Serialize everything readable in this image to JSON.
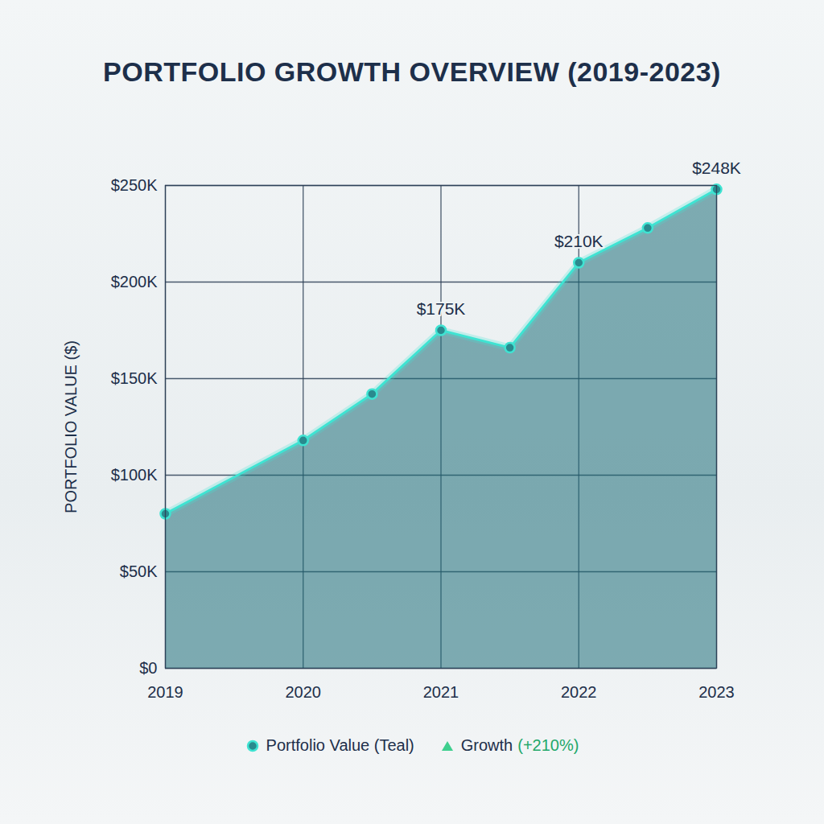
{
  "chart_data": {
    "type": "area",
    "title": "PORTFOLIO GROWTH OVERVIEW (2019-2023)",
    "y_label": "PORTFOLIO VALUE ($)",
    "x": [
      2019,
      2020,
      2020.5,
      2021,
      2021.5,
      2022,
      2022.5,
      2023
    ],
    "series": [
      {
        "name": "Portfolio Value (Teal)",
        "color": "#3fe3d2",
        "marker": "circle",
        "values": [
          80000,
          118000,
          142000,
          175000,
          166000,
          210000,
          228000,
          248000
        ]
      }
    ],
    "xlim": [
      2019,
      2023
    ],
    "xticks": [
      2019,
      2020,
      2021,
      2022,
      2023
    ],
    "ylim": [
      0,
      250000
    ],
    "yticks": [
      {
        "value": 0,
        "label": "$0"
      },
      {
        "value": 50000,
        "label": "$50K"
      },
      {
        "value": 100000,
        "label": "$100K"
      },
      {
        "value": 150000,
        "label": "$150K"
      },
      {
        "value": 200000,
        "label": "$200K"
      },
      {
        "value": 250000,
        "label": "$250K"
      }
    ],
    "grid": true,
    "legend": "bottom",
    "annotations": [
      {
        "x": 2021,
        "y": 175000,
        "text": "$175K"
      },
      {
        "x": 2022,
        "y": 210000,
        "text": "$210K"
      },
      {
        "x": 2023,
        "y": 248000,
        "text": "$248K"
      }
    ],
    "growth_legend": {
      "label": "Growth",
      "value_label": "(+210%)",
      "color": "#3ecf8e",
      "marker": "triangle"
    }
  }
}
